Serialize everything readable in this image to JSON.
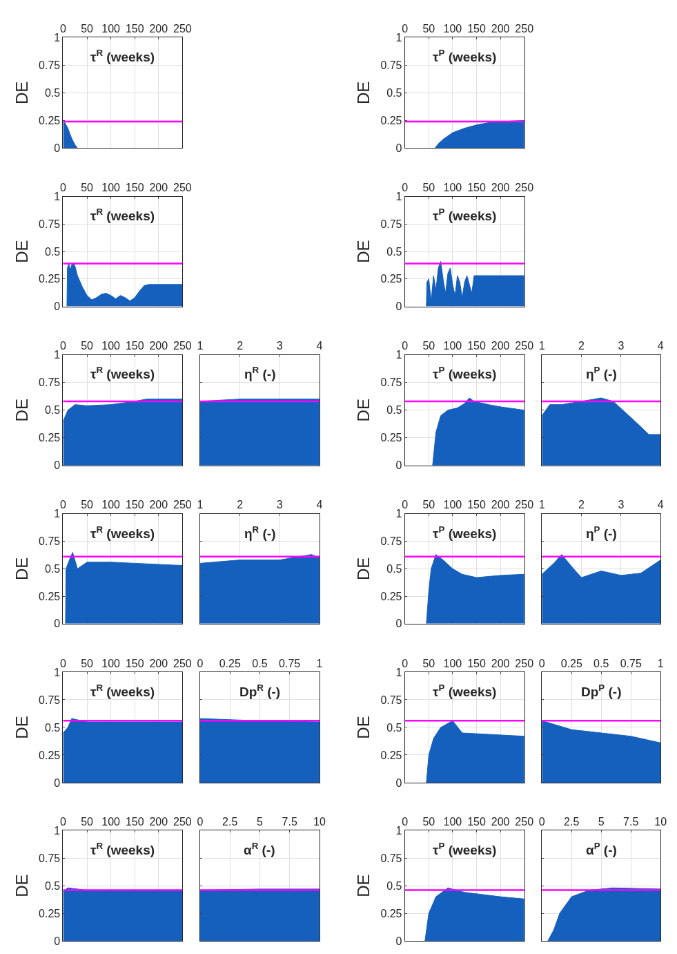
{
  "chart_data": [
    {
      "type": "area",
      "title": "τ$^{R}$ (weeks)",
      "ylabel": "DE",
      "x": [
        0,
        5,
        10,
        15,
        20,
        25,
        30
      ],
      "series": [
        {
          "color": "#1560bd",
          "values": [
            0.25,
            0.22,
            0.18,
            0.12,
            0.07,
            0.03,
            0
          ]
        }
      ],
      "ref_lines": [
        {
          "axis": "y",
          "value": 0.24,
          "color": "#ff00ff"
        }
      ],
      "xlim": [
        0,
        250
      ],
      "xticks": [
        0,
        50,
        100,
        150,
        200,
        250
      ],
      "ylim": [
        0,
        1
      ],
      "yticks": [
        0,
        0.25,
        0.5,
        0.75,
        1
      ],
      "grid": true,
      "legend": false
    },
    {
      "type": "area",
      "title": "τ$^{P}$ (weeks)",
      "ylabel": "DE",
      "x": [
        63,
        70,
        80,
        100,
        125,
        150,
        175,
        200,
        225,
        250
      ],
      "series": [
        {
          "color": "#1560bd",
          "values": [
            0,
            0.04,
            0.08,
            0.14,
            0.18,
            0.21,
            0.23,
            0.24,
            0.245,
            0.25
          ]
        }
      ],
      "ref_lines": [
        {
          "axis": "y",
          "value": 0.24,
          "color": "#ff00ff"
        }
      ],
      "xlim": [
        0,
        250
      ],
      "xticks": [
        0,
        50,
        100,
        150,
        200,
        250
      ],
      "ylim": [
        0,
        1
      ],
      "yticks": [
        0,
        0.25,
        0.5,
        0.75,
        1
      ],
      "grid": true,
      "legend": false
    },
    {
      "type": "area",
      "title": "τ$^{R}$ (weeks)",
      "ylabel": "DE",
      "x": [
        8,
        9,
        12,
        15,
        18,
        22,
        26,
        30,
        40,
        50,
        60,
        70,
        80,
        90,
        100,
        110,
        120,
        130,
        140,
        150,
        160,
        170,
        180,
        250
      ],
      "series": [
        {
          "color": "#1560bd",
          "values": [
            0,
            0.35,
            0.39,
            0.33,
            0.38,
            0.4,
            0.35,
            0.28,
            0.18,
            0.1,
            0.06,
            0.08,
            0.11,
            0.12,
            0.1,
            0.07,
            0.1,
            0.08,
            0.05,
            0.08,
            0.14,
            0.19,
            0.2,
            0.2
          ]
        }
      ],
      "ref_lines": [
        {
          "axis": "y",
          "value": 0.39,
          "color": "#ff00ff"
        }
      ],
      "xlim": [
        0,
        250
      ],
      "xticks": [
        0,
        50,
        100,
        150,
        200,
        250
      ],
      "ylim": [
        0,
        1
      ],
      "yticks": [
        0,
        0.25,
        0.5,
        0.75,
        1
      ],
      "grid": true,
      "legend": false
    },
    {
      "type": "area",
      "title": "τ$^{P}$ (weeks)",
      "ylabel": "DE",
      "x": [
        45,
        46,
        50,
        55,
        60,
        65,
        70,
        75,
        80,
        85,
        90,
        95,
        100,
        105,
        110,
        115,
        120,
        125,
        130,
        135,
        140,
        145,
        250
      ],
      "series": [
        {
          "color": "#1560bd",
          "values": [
            0,
            0.22,
            0.25,
            0.05,
            0.28,
            0.15,
            0.35,
            0.41,
            0.25,
            0.12,
            0.3,
            0.35,
            0.2,
            0.1,
            0.28,
            0.22,
            0.08,
            0.22,
            0.28,
            0.2,
            0.12,
            0.28,
            0.28
          ]
        }
      ],
      "ref_lines": [
        {
          "axis": "y",
          "value": 0.39,
          "color": "#ff00ff"
        }
      ],
      "xlim": [
        0,
        250
      ],
      "xticks": [
        0,
        50,
        100,
        150,
        200,
        250
      ],
      "ylim": [
        0,
        1
      ],
      "yticks": [
        0,
        0.25,
        0.5,
        0.75,
        1
      ],
      "grid": true,
      "legend": false
    },
    {
      "type": "area",
      "title": "τ$^{R}$ (weeks)",
      "ylabel": "DE",
      "x": [
        0,
        10,
        25,
        50,
        100,
        150,
        175,
        200,
        250
      ],
      "series": [
        {
          "color": "#1560bd",
          "values": [
            0.4,
            0.5,
            0.55,
            0.54,
            0.55,
            0.58,
            0.6,
            0.6,
            0.6
          ]
        }
      ],
      "ref_lines": [
        {
          "axis": "y",
          "value": 0.58,
          "color": "#ff00ff"
        }
      ],
      "xlim": [
        0,
        250
      ],
      "xticks": [
        0,
        50,
        100,
        150,
        200,
        250
      ],
      "ylim": [
        0,
        1
      ],
      "yticks": [
        0,
        0.25,
        0.5,
        0.75,
        1
      ],
      "grid": true,
      "legend": false
    },
    {
      "type": "area",
      "title": "η$^{R}$ (-)",
      "x": [
        1,
        2,
        3,
        4
      ],
      "series": [
        {
          "color": "#1560bd",
          "values": [
            0.58,
            0.6,
            0.6,
            0.6
          ]
        }
      ],
      "ref_lines": [
        {
          "axis": "y",
          "value": 0.58,
          "color": "#ff00ff"
        }
      ],
      "xlim": [
        1,
        4
      ],
      "xticks": [
        1,
        2,
        3,
        4
      ],
      "ylim": [
        0,
        1
      ],
      "yticks": [
        0,
        0.25,
        0.5,
        0.75,
        1
      ],
      "tick_labels": "x",
      "grid": true,
      "legend": false
    },
    {
      "type": "area",
      "title": "τ$^{P}$ (weeks)",
      "ylabel": "DE",
      "x": [
        58,
        65,
        75,
        90,
        110,
        125,
        135,
        145,
        175,
        200,
        250
      ],
      "series": [
        {
          "color": "#1560bd",
          "values": [
            0,
            0.3,
            0.45,
            0.5,
            0.52,
            0.56,
            0.61,
            0.58,
            0.55,
            0.53,
            0.5
          ]
        }
      ],
      "ref_lines": [
        {
          "axis": "y",
          "value": 0.58,
          "color": "#ff00ff"
        }
      ],
      "xlim": [
        0,
        250
      ],
      "xticks": [
        0,
        50,
        100,
        150,
        200,
        250
      ],
      "ylim": [
        0,
        1
      ],
      "yticks": [
        0,
        0.25,
        0.5,
        0.75,
        1
      ],
      "grid": true,
      "legend": false
    },
    {
      "type": "area",
      "title": "η$^{P}$ (-)",
      "x": [
        1,
        1.2,
        1.5,
        2,
        2.5,
        2.8,
        3.2,
        3.5,
        3.7,
        4
      ],
      "series": [
        {
          "color": "#1560bd",
          "values": [
            0.45,
            0.55,
            0.55,
            0.58,
            0.61,
            0.58,
            0.45,
            0.35,
            0.28,
            0.28
          ]
        }
      ],
      "ref_lines": [
        {
          "axis": "y",
          "value": 0.58,
          "color": "#ff00ff"
        }
      ],
      "xlim": [
        1,
        4
      ],
      "xticks": [
        1,
        2,
        3,
        4
      ],
      "ylim": [
        0,
        1
      ],
      "yticks": [
        0,
        0.25,
        0.5,
        0.75,
        1
      ],
      "tick_labels": "x",
      "grid": true,
      "legend": false
    },
    {
      "type": "area",
      "title": "τ$^{R}$ (weeks)",
      "ylabel": "DE",
      "x": [
        5,
        6,
        15,
        20,
        30,
        50,
        100,
        150,
        200,
        250
      ],
      "series": [
        {
          "color": "#1560bd",
          "values": [
            0,
            0.5,
            0.6,
            0.65,
            0.5,
            0.56,
            0.56,
            0.55,
            0.54,
            0.53
          ]
        }
      ],
      "ref_lines": [
        {
          "axis": "y",
          "value": 0.61,
          "color": "#ff00ff"
        }
      ],
      "xlim": [
        0,
        250
      ],
      "xticks": [
        0,
        50,
        100,
        150,
        200,
        250
      ],
      "ylim": [
        0,
        1
      ],
      "yticks": [
        0,
        0.25,
        0.5,
        0.75,
        1
      ],
      "grid": true,
      "legend": false
    },
    {
      "type": "area",
      "title": "η$^{R}$ (-)",
      "x": [
        1,
        2,
        3,
        3.8,
        4
      ],
      "series": [
        {
          "color": "#1560bd",
          "values": [
            0.55,
            0.58,
            0.58,
            0.63,
            0.6
          ]
        }
      ],
      "ref_lines": [
        {
          "axis": "y",
          "value": 0.61,
          "color": "#ff00ff"
        }
      ],
      "xlim": [
        1,
        4
      ],
      "xticks": [
        1,
        2,
        3,
        4
      ],
      "ylim": [
        0,
        1
      ],
      "yticks": [
        0,
        0.25,
        0.5,
        0.75,
        1
      ],
      "tick_labels": "x",
      "grid": true,
      "legend": false
    },
    {
      "type": "area",
      "title": "τ$^{P}$ (weeks)",
      "ylabel": "DE",
      "x": [
        45,
        50,
        55,
        65,
        80,
        100,
        120,
        150,
        200,
        250
      ],
      "series": [
        {
          "color": "#1560bd",
          "values": [
            0,
            0.3,
            0.5,
            0.63,
            0.58,
            0.5,
            0.45,
            0.42,
            0.44,
            0.45
          ]
        }
      ],
      "ref_lines": [
        {
          "axis": "y",
          "value": 0.61,
          "color": "#ff00ff"
        }
      ],
      "xlim": [
        0,
        250
      ],
      "xticks": [
        0,
        50,
        100,
        150,
        200,
        250
      ],
      "ylim": [
        0,
        1
      ],
      "yticks": [
        0,
        0.25,
        0.5,
        0.75,
        1
      ],
      "grid": true,
      "legend": false
    },
    {
      "type": "area",
      "title": "η$^{P}$ (-)",
      "x": [
        1,
        1.3,
        1.5,
        1.8,
        2,
        2.5,
        3,
        3.5,
        4
      ],
      "series": [
        {
          "color": "#1560bd",
          "values": [
            0.45,
            0.55,
            0.63,
            0.5,
            0.42,
            0.48,
            0.44,
            0.46,
            0.58
          ]
        }
      ],
      "ref_lines": [
        {
          "axis": "y",
          "value": 0.61,
          "color": "#ff00ff"
        }
      ],
      "xlim": [
        1,
        4
      ],
      "xticks": [
        1,
        2,
        3,
        4
      ],
      "ylim": [
        0,
        1
      ],
      "yticks": [
        0,
        0.25,
        0.5,
        0.75,
        1
      ],
      "tick_labels": "x",
      "grid": true,
      "legend": false
    },
    {
      "type": "area",
      "title": "τ$^{R}$ (weeks)",
      "ylabel": "DE",
      "x": [
        0,
        10,
        18,
        50,
        150,
        250
      ],
      "series": [
        {
          "color": "#1560bd",
          "values": [
            0.45,
            0.5,
            0.58,
            0.55,
            0.55,
            0.55
          ]
        }
      ],
      "ref_lines": [
        {
          "axis": "y",
          "value": 0.56,
          "color": "#ff00ff"
        }
      ],
      "xlim": [
        0,
        250
      ],
      "xticks": [
        0,
        50,
        100,
        150,
        200,
        250
      ],
      "ylim": [
        0,
        1
      ],
      "yticks": [
        0,
        0.25,
        0.5,
        0.75,
        1
      ],
      "grid": true,
      "legend": false
    },
    {
      "type": "area",
      "title": "Dp$^{R}$ (-)",
      "x": [
        0,
        0.5,
        1
      ],
      "series": [
        {
          "color": "#1560bd",
          "values": [
            0.58,
            0.56,
            0.55
          ]
        }
      ],
      "ref_lines": [
        {
          "axis": "y",
          "value": 0.56,
          "color": "#ff00ff"
        }
      ],
      "xlim": [
        0,
        1
      ],
      "xticks": [
        0,
        0.25,
        0.5,
        0.75,
        1
      ],
      "ylim": [
        0,
        1
      ],
      "yticks": [
        0,
        0.25,
        0.5,
        0.75,
        1
      ],
      "tick_labels": "x",
      "grid": true,
      "legend": false
    },
    {
      "type": "area",
      "title": "τ$^{P}$ (weeks)",
      "ylabel": "DE",
      "x": [
        45,
        50,
        60,
        75,
        100,
        120,
        250
      ],
      "series": [
        {
          "color": "#1560bd",
          "values": [
            0,
            0.25,
            0.4,
            0.5,
            0.56,
            0.45,
            0.42
          ]
        }
      ],
      "ref_lines": [
        {
          "axis": "y",
          "value": 0.56,
          "color": "#ff00ff"
        }
      ],
      "xlim": [
        0,
        250
      ],
      "xticks": [
        0,
        50,
        100,
        150,
        200,
        250
      ],
      "ylim": [
        0,
        1
      ],
      "yticks": [
        0,
        0.25,
        0.5,
        0.75,
        1
      ],
      "grid": true,
      "legend": false
    },
    {
      "type": "area",
      "title": "Dp$^{P}$ (-)",
      "x": [
        0,
        0.25,
        0.5,
        0.75,
        1
      ],
      "series": [
        {
          "color": "#1560bd",
          "values": [
            0.56,
            0.48,
            0.45,
            0.42,
            0.36
          ]
        }
      ],
      "ref_lines": [
        {
          "axis": "y",
          "value": 0.56,
          "color": "#ff00ff"
        }
      ],
      "xlim": [
        0,
        1
      ],
      "xticks": [
        0,
        0.25,
        0.5,
        0.75,
        1
      ],
      "ylim": [
        0,
        1
      ],
      "yticks": [
        0,
        0.25,
        0.5,
        0.75,
        1
      ],
      "tick_labels": "x",
      "grid": true,
      "legend": false
    },
    {
      "type": "area",
      "title": "τ$^{R}$ (weeks)",
      "ylabel": "DE",
      "x": [
        0,
        10,
        50,
        250
      ],
      "series": [
        {
          "color": "#1560bd",
          "values": [
            0.45,
            0.48,
            0.46,
            0.46
          ]
        }
      ],
      "ref_lines": [
        {
          "axis": "y",
          "value": 0.46,
          "color": "#ff00ff"
        }
      ],
      "xlim": [
        0,
        250
      ],
      "xticks": [
        0,
        50,
        100,
        150,
        200,
        250
      ],
      "ylim": [
        0,
        1
      ],
      "yticks": [
        0,
        0.25,
        0.5,
        0.75,
        1
      ],
      "grid": true,
      "legend": false
    },
    {
      "type": "area",
      "title": "α$^{R}$ (-)",
      "x": [
        0,
        5,
        10
      ],
      "series": [
        {
          "color": "#1560bd",
          "values": [
            0.46,
            0.47,
            0.47
          ]
        }
      ],
      "ref_lines": [
        {
          "axis": "y",
          "value": 0.46,
          "color": "#ff00ff"
        }
      ],
      "xlim": [
        0,
        10
      ],
      "xticks": [
        0,
        2.5,
        5,
        7.5,
        10
      ],
      "ylim": [
        0,
        1
      ],
      "yticks": [
        0,
        0.25,
        0.5,
        0.75,
        1
      ],
      "tick_labels": "x",
      "grid": true,
      "legend": false
    },
    {
      "type": "area",
      "title": "τ$^{P}$ (weeks)",
      "ylabel": "DE",
      "x": [
        42,
        50,
        65,
        90,
        125,
        200,
        250
      ],
      "series": [
        {
          "color": "#1560bd",
          "values": [
            0,
            0.25,
            0.4,
            0.48,
            0.44,
            0.4,
            0.38
          ]
        }
      ],
      "ref_lines": [
        {
          "axis": "y",
          "value": 0.46,
          "color": "#ff00ff"
        }
      ],
      "xlim": [
        0,
        250
      ],
      "xticks": [
        0,
        50,
        100,
        150,
        200,
        250
      ],
      "ylim": [
        0,
        1
      ],
      "yticks": [
        0,
        0.25,
        0.5,
        0.75,
        1
      ],
      "grid": true,
      "legend": false
    },
    {
      "type": "area",
      "title": "α$^{P}$ (-)",
      "x": [
        0.5,
        1,
        1.5,
        2.5,
        4,
        6,
        10
      ],
      "series": [
        {
          "color": "#1560bd",
          "values": [
            0,
            0.1,
            0.25,
            0.4,
            0.46,
            0.48,
            0.47
          ]
        }
      ],
      "ref_lines": [
        {
          "axis": "y",
          "value": 0.46,
          "color": "#ff00ff"
        }
      ],
      "xlim": [
        0,
        10
      ],
      "xticks": [
        0,
        2.5,
        5,
        7.5,
        10
      ],
      "ylim": [
        0,
        1
      ],
      "yticks": [
        0,
        0.25,
        0.5,
        0.75,
        1
      ],
      "tick_labels": "x",
      "grid": true,
      "legend": false
    }
  ]
}
